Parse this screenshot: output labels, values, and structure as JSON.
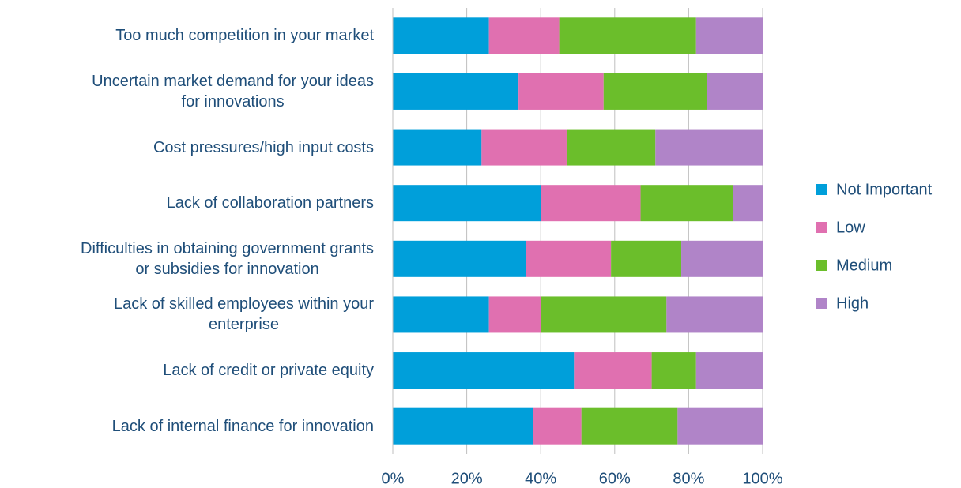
{
  "chart_data": {
    "type": "stacked-bar-horizontal",
    "categories": [
      "Too much competition in your market",
      "Uncertain market demand for your ideas\nfor innovations",
      "Cost pressures/high input costs",
      "Lack of collaboration partners",
      "Difficulties in obtaining government grants\nor subsidies for innovation",
      "Lack of skilled employees within your\nenterprise",
      "Lack of credit or private equity",
      "Lack of internal finance for innovation"
    ],
    "series": [
      {
        "name": "Not Important",
        "color": "#009fda",
        "values": [
          26,
          34,
          24,
          40,
          36,
          26,
          49,
          38
        ]
      },
      {
        "name": "Low",
        "color": "#e070b0",
        "values": [
          19,
          23,
          23,
          27,
          23,
          14,
          21,
          13
        ]
      },
      {
        "name": "Medium",
        "color": "#6bbe2b",
        "values": [
          37,
          28,
          24,
          25,
          19,
          34,
          12,
          26
        ]
      },
      {
        "name": "High",
        "color": "#b084c8",
        "values": [
          18,
          15,
          29,
          8,
          22,
          26,
          18,
          23
        ]
      }
    ],
    "xlim": [
      0,
      100
    ],
    "xticks": [
      {
        "value": 0,
        "label": "0%"
      },
      {
        "value": 20,
        "label": "20%"
      },
      {
        "value": 40,
        "label": "40%"
      },
      {
        "value": 60,
        "label": "60%"
      },
      {
        "value": 80,
        "label": "80%"
      },
      {
        "value": 100,
        "label": "100%"
      }
    ],
    "grid": true,
    "legend": "right"
  }
}
